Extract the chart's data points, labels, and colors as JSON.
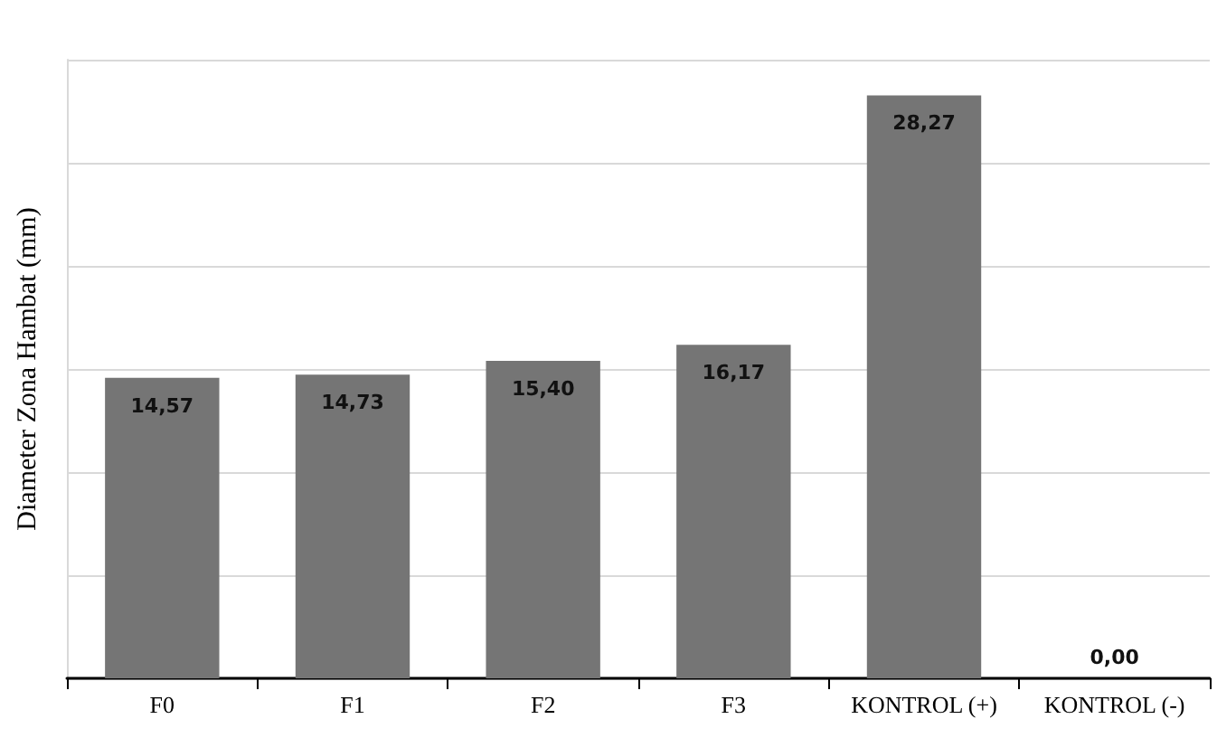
{
  "chart_data": {
    "type": "bar",
    "ylabel": "Diameter Zona Hambat (mm)",
    "categories": [
      "F0",
      "F1",
      "F2",
      "F3",
      "KONTROL (+)",
      "KONTROL (-)"
    ],
    "values": [
      14.57,
      14.73,
      15.4,
      16.17,
      28.27,
      0.0
    ],
    "value_labels": [
      "14,57",
      "14,73",
      "15,40",
      "16,17",
      "28,27",
      "0,00"
    ],
    "color": "#757575",
    "ylim": [
      0,
      30
    ],
    "yticks": [
      {
        "value": 0,
        "label": null
      },
      {
        "value": 5,
        "label": null
      },
      {
        "value": 10,
        "label": null
      },
      {
        "value": 15,
        "label": null
      },
      {
        "value": 20,
        "label": null
      },
      {
        "value": 25,
        "label": null
      },
      {
        "value": 30,
        "label": null
      }
    ],
    "grid": "y",
    "tick_labels": "x"
  }
}
